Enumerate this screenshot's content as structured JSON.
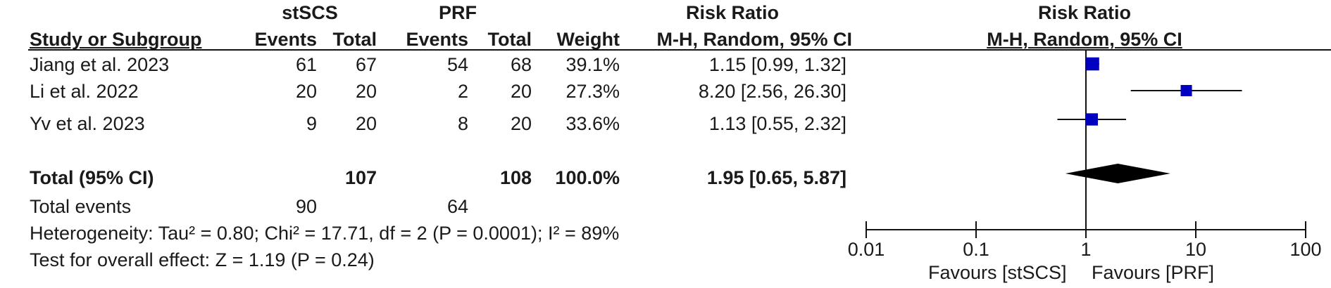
{
  "header": {
    "group1": "stSCS",
    "group2": "PRF",
    "rr_title": "Risk Ratio",
    "plot_title": "Risk Ratio",
    "col_study": "Study or Subgroup",
    "col_events1": "Events",
    "col_total1": "Total",
    "col_events2": "Events",
    "col_total2": "Total",
    "col_weight": "Weight",
    "col_method": "M-H, Random, 95% CI",
    "plot_method": "M-H, Random, 95% CI"
  },
  "rows": [
    {
      "study": "Jiang et al. 2023",
      "events1": "61",
      "total1": "67",
      "events2": "54",
      "total2": "68",
      "weight": "39.1%",
      "ci_text": "1.15 [0.99, 1.32]"
    },
    {
      "study": "Li et al. 2022",
      "events1": "20",
      "total1": "20",
      "events2": "2",
      "total2": "20",
      "weight": "27.3%",
      "ci_text": "8.20 [2.56, 26.30]"
    },
    {
      "study": "Yv et al. 2023",
      "events1": "9",
      "total1": "20",
      "events2": "8",
      "total2": "20",
      "weight": "33.6%",
      "ci_text": "1.13 [0.55, 2.32]"
    }
  ],
  "total": {
    "label": "Total (95% CI)",
    "total1": "107",
    "total2": "108",
    "weight": "100.0%",
    "ci_text": "1.95 [0.65, 5.87]"
  },
  "events": {
    "label": "Total events",
    "events1": "90",
    "events2": "64"
  },
  "heterogeneity": "Heterogeneity: Tau² = 0.80; Chi² = 17.71, df = 2 (P = 0.0001); I² = 89%",
  "overall_effect": "Test for overall effect: Z = 1.19 (P = 0.24)",
  "favours_left": "Favours [stSCS]",
  "favours_right": "Favours [PRF]",
  "colors": {
    "marker": "#0000c0",
    "diamond": "#000000",
    "line": "#111111"
  },
  "chart_data": {
    "type": "forest",
    "x_scale": "log",
    "xlim": [
      0.01,
      100
    ],
    "ticks": [
      0.01,
      0.1,
      1,
      10,
      100
    ],
    "tick_labels": [
      "0.01",
      "0.1",
      "1",
      "10",
      "100"
    ],
    "reference_line": 1,
    "studies": [
      {
        "name": "Jiang et al. 2023",
        "rr": 1.15,
        "lower": 0.99,
        "upper": 1.32,
        "weight": 39.1
      },
      {
        "name": "Li et al. 2022",
        "rr": 8.2,
        "lower": 2.56,
        "upper": 26.3,
        "weight": 27.3
      },
      {
        "name": "Yv et al. 2023",
        "rr": 1.13,
        "lower": 0.55,
        "upper": 2.32,
        "weight": 33.6
      }
    ],
    "pooled": {
      "rr": 1.95,
      "lower": 0.65,
      "upper": 5.87
    }
  }
}
